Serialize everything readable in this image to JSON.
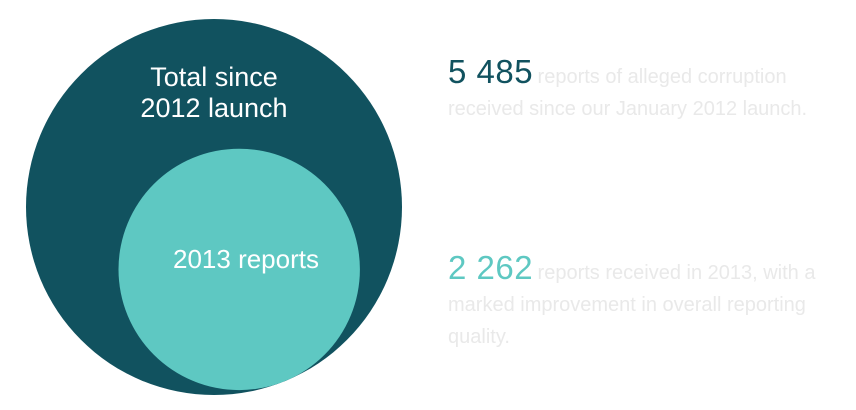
{
  "chart_data": {
    "type": "nested-circles",
    "series": [
      {
        "name": "Total since 2012 launch",
        "value": 5485,
        "color": "#11525f"
      },
      {
        "name": "2013 reports",
        "value": 2262,
        "color": "#5ec8c2"
      }
    ]
  },
  "labels": {
    "outer_line1": "Total since",
    "outer_line2": "2012 launch",
    "inner": "2013 reports"
  },
  "stats": [
    {
      "number": "5 485",
      "text": "reports of alleged corruption received since our January 2012 launch.",
      "color": "#11525f"
    },
    {
      "number": "2 262",
      "text": "reports received in 2013, with a marked improvement in overall reporting quality.",
      "color": "#5ec8c2"
    }
  ]
}
